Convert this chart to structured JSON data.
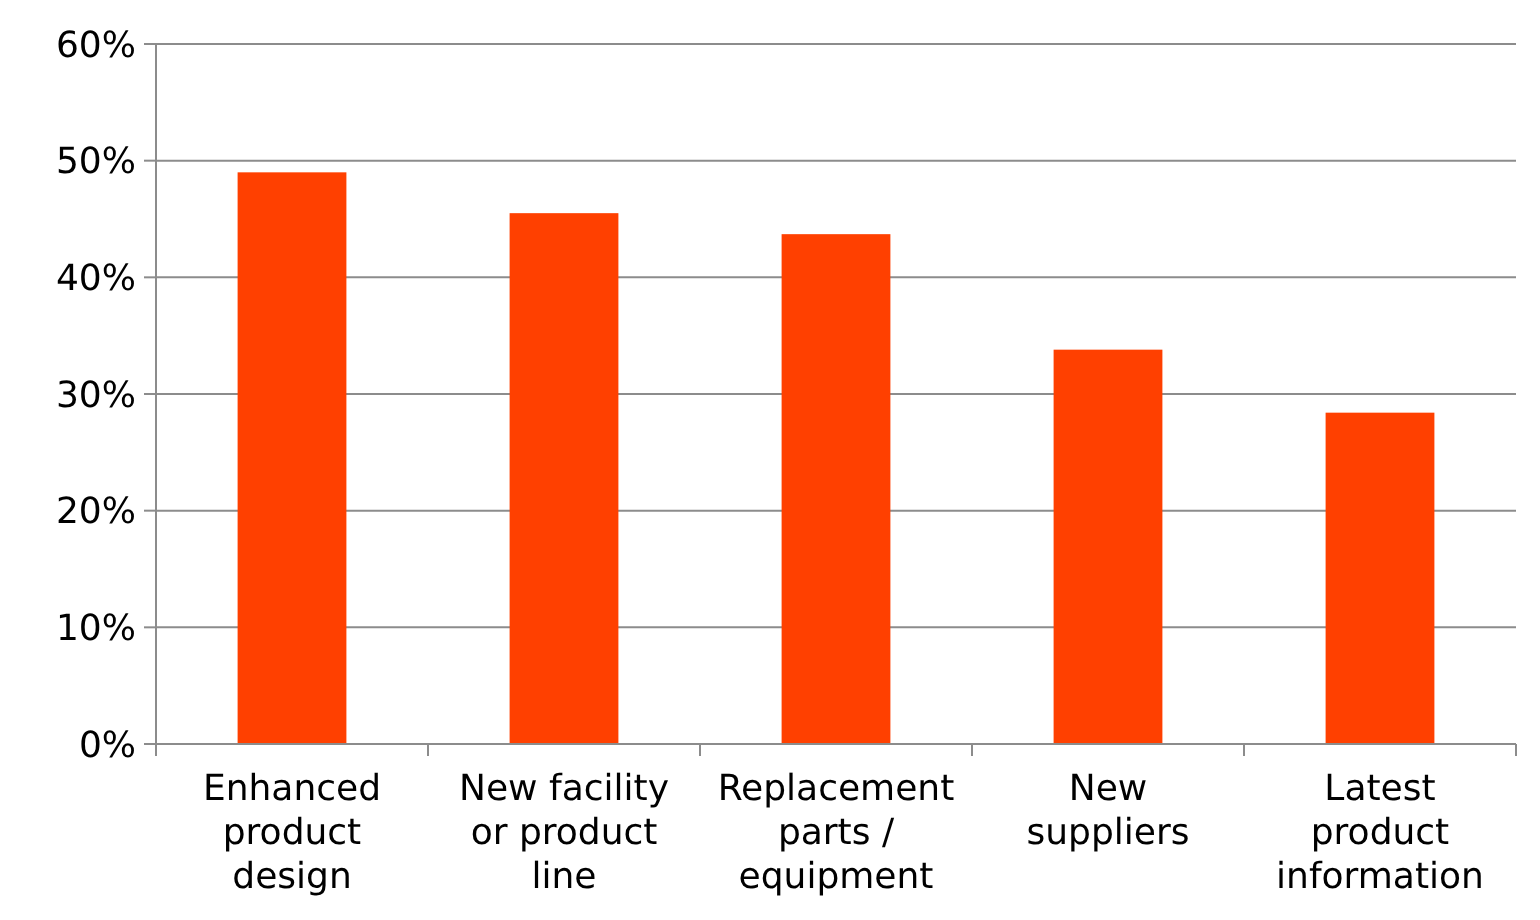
{
  "chart_data": {
    "type": "bar",
    "categories": [
      "Enhanced product design",
      "New facility or product line",
      "Replacement parts / equipment",
      "New suppliers",
      "Latest product information"
    ],
    "values": [
      49.0,
      45.5,
      43.7,
      33.8,
      28.4
    ],
    "color": "#ff4000",
    "ylim": [
      0,
      60
    ],
    "yticks": [
      {
        "value": 0,
        "label": "0%"
      },
      {
        "value": 10,
        "label": "10%"
      },
      {
        "value": 20,
        "label": "20%"
      },
      {
        "value": 30,
        "label": "30%"
      },
      {
        "value": 40,
        "label": "40%"
      },
      {
        "value": 50,
        "label": "50%"
      },
      {
        "value": 60,
        "label": "60%"
      }
    ],
    "grid": "y"
  }
}
